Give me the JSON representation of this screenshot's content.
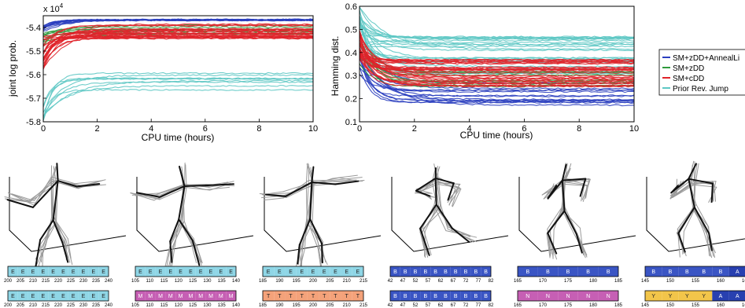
{
  "chart_data": [
    {
      "type": "line",
      "title": "",
      "xlabel": "CPU time (hours)",
      "ylabel": "joint log prob.",
      "y_multiplier_label": "x 10^4",
      "xlim": [
        0,
        10
      ],
      "ylim": [
        -5.8,
        -5.35
      ],
      "xticks": [
        "0",
        "2",
        "4",
        "6",
        "8",
        "10"
      ],
      "yticks": [
        "-5.4",
        "-5.5",
        "-5.6",
        "-5.7",
        "-5.8"
      ],
      "grid": false,
      "series": [
        {
          "name": "SM+zDD+AnnealLi",
          "color": "#2b3fbf",
          "count": 12,
          "start": [
            -5.42,
            -5.38
          ],
          "final": [
            -5.365,
            -5.37
          ]
        },
        {
          "name": "SM+zDD",
          "color": "#2e9a3c",
          "count": 8,
          "start": [
            -5.5,
            -5.42
          ],
          "final": [
            -5.39,
            -5.43
          ]
        },
        {
          "name": "SM+cDD",
          "color": "#e0242a",
          "count": 24,
          "start": [
            -5.58,
            -5.44
          ],
          "final": [
            -5.38,
            -5.45
          ]
        },
        {
          "name": "Prior Rev. Jump",
          "color": "#5ec8c4",
          "count": 9,
          "start": [
            -5.8,
            -5.72
          ],
          "final": [
            -5.59,
            -5.68
          ]
        }
      ]
    },
    {
      "type": "line",
      "title": "",
      "xlabel": "CPU time (hours)",
      "ylabel": "Hamming dist.",
      "xlim": [
        0,
        10
      ],
      "ylim": [
        0.1,
        0.6
      ],
      "xticks": [
        "0",
        "2",
        "4",
        "6",
        "8",
        "10"
      ],
      "yticks": [
        "0.1",
        "0.2",
        "0.3",
        "0.4",
        "0.5",
        "0.6"
      ],
      "grid": false,
      "legend_position": "right",
      "series": [
        {
          "name": "SM+zDD+AnnealLi",
          "color": "#2b3fbf",
          "count": 14,
          "start": [
            0.3,
            0.45
          ],
          "final": [
            0.17,
            0.28
          ]
        },
        {
          "name": "SM+zDD",
          "color": "#2e9a3c",
          "count": 8,
          "start": [
            0.35,
            0.5
          ],
          "final": [
            0.24,
            0.33
          ]
        },
        {
          "name": "SM+cDD",
          "color": "#e0242a",
          "count": 30,
          "start": [
            0.36,
            0.5
          ],
          "final": [
            0.25,
            0.37
          ]
        },
        {
          "name": "Prior Rev. Jump",
          "color": "#5ec8c4",
          "count": 24,
          "start": [
            0.4,
            0.6
          ],
          "final": [
            0.3,
            0.47
          ]
        }
      ]
    }
  ],
  "legend": {
    "items": [
      {
        "label": "SM+zDD+AnnealLi",
        "color": "#2b3fbf"
      },
      {
        "label": "SM+zDD",
        "color": "#2e9a3c"
      },
      {
        "label": "SM+cDD",
        "color": "#e0242a"
      },
      {
        "label": "Prior Rev. Jump",
        "color": "#5ec8c4"
      }
    ]
  },
  "colors": {
    "E": "#8fd6e6",
    "M": "#c65fb4",
    "T": "#f4a27a",
    "B": "#3a55c4",
    "N": "#c65fb4",
    "Y": "#f2c54a",
    "A": "#2840b0"
  },
  "panels": [
    {
      "top_seq": [
        "E",
        "E",
        "E",
        "E",
        "E",
        "E",
        "E",
        "E",
        "E",
        "E"
      ],
      "top_ticks": [
        "200",
        "205",
        "210",
        "215",
        "220",
        "225",
        "230",
        "235",
        "240"
      ],
      "bottom_seq": [
        "E",
        "E",
        "E",
        "E",
        "E",
        "E",
        "E",
        "E",
        "E",
        "E"
      ],
      "bottom_ticks": [
        "200",
        "205",
        "210",
        "215",
        "220",
        "225",
        "230",
        "235",
        "240"
      ]
    },
    {
      "top_seq": [
        "E",
        "E",
        "E",
        "E",
        "E",
        "E",
        "E",
        "E",
        "E",
        "E"
      ],
      "top_ticks": [
        "105",
        "110",
        "115",
        "120",
        "125",
        "130",
        "135",
        "140"
      ],
      "bottom_seq": [
        "M",
        "M",
        "M",
        "M",
        "M",
        "M",
        "M",
        "M",
        "M",
        "M"
      ],
      "bottom_ticks": [
        "105",
        "110",
        "115",
        "120",
        "125",
        "130",
        "135",
        "140"
      ]
    },
    {
      "top_seq": [
        "E",
        "E",
        "E",
        "E",
        "E",
        "E",
        "E",
        "E",
        "E"
      ],
      "top_ticks": [
        "185",
        "190",
        "195",
        "200",
        "205",
        "210",
        "215"
      ],
      "bottom_seq": [
        "T",
        "T",
        "T",
        "T",
        "T",
        "T",
        "T",
        "T",
        "T"
      ],
      "bottom_ticks": [
        "185",
        "190",
        "195",
        "200",
        "205",
        "210",
        "215"
      ]
    },
    {
      "top_seq": [
        "B",
        "B",
        "B",
        "B",
        "B",
        "B",
        "B",
        "B",
        "B",
        "B"
      ],
      "top_ticks": [
        "42",
        "47",
        "52",
        "57",
        "62",
        "67",
        "72",
        "77",
        "82"
      ],
      "bottom_seq": [
        "B",
        "B",
        "B",
        "B",
        "B",
        "B",
        "B",
        "B",
        "B",
        "B"
      ],
      "bottom_ticks": [
        "42",
        "47",
        "52",
        "57",
        "62",
        "67",
        "72",
        "77",
        "82"
      ]
    },
    {
      "top_seq": [
        "B",
        "B",
        "B",
        "B",
        "B"
      ],
      "top_ticks": [
        "165",
        "170",
        "175",
        "180",
        "185"
      ],
      "bottom_seq": [
        "N",
        "N",
        "N",
        "N",
        "N"
      ],
      "bottom_ticks": [
        "165",
        "170",
        "175",
        "180",
        "185"
      ]
    },
    {
      "top_seq": [
        "B",
        "B",
        "B",
        "B",
        "B",
        "A"
      ],
      "top_ticks": [
        "145",
        "150",
        "155",
        "160",
        "165"
      ],
      "bottom_seq": [
        "Y",
        "Y",
        "Y",
        "Y",
        "A",
        "A"
      ],
      "bottom_ticks": [
        "145",
        "150",
        "155",
        "160",
        "165"
      ]
    }
  ]
}
